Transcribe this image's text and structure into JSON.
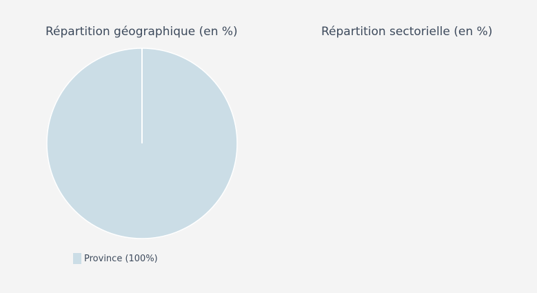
{
  "chart_data": [
    {
      "type": "pie",
      "title": "Répartition géographique (en %)",
      "categories": [
        "Province"
      ],
      "values": [
        100
      ],
      "colors": [
        "#cbdde6"
      ],
      "legend": {
        "position": "bottom-left",
        "entries": [
          "Province (100%)"
        ]
      }
    },
    {
      "type": "pie",
      "title": "Répartition sectorielle (en %)",
      "categories": [],
      "values": []
    }
  ]
}
